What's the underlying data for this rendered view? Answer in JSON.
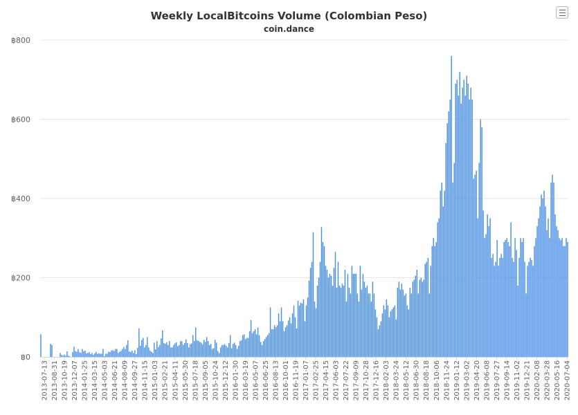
{
  "menu": {
    "icon": "hamburger-menu-icon"
  },
  "chart_data": {
    "type": "bar",
    "title": "Weekly LocalBitcoins Volume (Colombian Peso)",
    "subtitle": "coin.dance",
    "xlabel": "",
    "ylabel": "",
    "ylim": [
      0,
      800
    ],
    "y_ticks": [
      0,
      200,
      400,
      600,
      800
    ],
    "y_tick_labels": [
      "฿0",
      "฿200",
      "฿400",
      "฿600",
      "฿800"
    ],
    "grid": true,
    "legend": "none",
    "bar_color": "#4a8fe7",
    "axis_color": "#ccd6eb",
    "grid_color": "#e6e6e6",
    "x_tick_labels": [
      "2013-07-13",
      "2013-08-31",
      "2013-10-19",
      "2013-12-07",
      "2014-01-25",
      "2014-03-15",
      "2014-05-03",
      "2014-06-21",
      "2014-08-09",
      "2014-09-27",
      "2014-11-15",
      "2015-01-03",
      "2015-02-21",
      "2015-04-11",
      "2015-05-30",
      "2015-07-18",
      "2015-09-05",
      "2015-10-24",
      "2015-12-12",
      "2016-01-30",
      "2016-03-19",
      "2016-05-07",
      "2016-06-25",
      "2016-08-13",
      "2016-10-01",
      "2016-11-19",
      "2017-01-07",
      "2017-02-25",
      "2017-04-15",
      "2017-06-03",
      "2017-07-22",
      "2017-09-09",
      "2017-10-28",
      "2017-12-16",
      "2018-02-03",
      "2018-03-24",
      "2018-05-12",
      "2018-06-30",
      "2018-08-18",
      "2018-10-06",
      "2018-11-24",
      "2019-01-12",
      "2019-03-02",
      "2019-04-20",
      "2019-06-08",
      "2019-07-27",
      "2019-09-14",
      "2019-11-02",
      "2019-12-21",
      "2020-02-08",
      "2020-03-28",
      "2020-05-16",
      "2020-07-04"
    ],
    "start_week": "2013-07-13",
    "interval": "weekly",
    "values": [
      57,
      0,
      0,
      0,
      0,
      0,
      0,
      33,
      30,
      0,
      0,
      0,
      0,
      0,
      10,
      5,
      3,
      6,
      3,
      14,
      3,
      1,
      0,
      12,
      26,
      15,
      13,
      20,
      12,
      10,
      20,
      14,
      16,
      9,
      10,
      12,
      7,
      10,
      5,
      9,
      13,
      8,
      9,
      8,
      8,
      20,
      2,
      8,
      8,
      13,
      12,
      16,
      17,
      15,
      20,
      20,
      10,
      13,
      15,
      20,
      25,
      20,
      30,
      42,
      14,
      12,
      16,
      10,
      17,
      7,
      23,
      72,
      28,
      43,
      48,
      24,
      30,
      50,
      24,
      16,
      13,
      10,
      36,
      19,
      40,
      25,
      30,
      47,
      67,
      35,
      33,
      37,
      30,
      40,
      24,
      24,
      30,
      34,
      37,
      27,
      30,
      40,
      39,
      30,
      35,
      44,
      35,
      24,
      32,
      34,
      55,
      40,
      74,
      42,
      40,
      38,
      36,
      32,
      43,
      38,
      50,
      40,
      30,
      33,
      20,
      22,
      43,
      36,
      15,
      10,
      24,
      30,
      30,
      32,
      28,
      24,
      35,
      55,
      22,
      33,
      36,
      30,
      20,
      28,
      40,
      42,
      55,
      57,
      45,
      48,
      48,
      65,
      93,
      60,
      65,
      70,
      57,
      74,
      55,
      38,
      30,
      40,
      45,
      50,
      55,
      60,
      125,
      70,
      70,
      80,
      75,
      80,
      110,
      90,
      125,
      90,
      65,
      75,
      80,
      92,
      100,
      85,
      110,
      130,
      100,
      72,
      142,
      130,
      137,
      135,
      145,
      90,
      130,
      150,
      193,
      225,
      240,
      315,
      140,
      123,
      180,
      200,
      240,
      328,
      290,
      280,
      230,
      220,
      200,
      210,
      205,
      180,
      225,
      265,
      175,
      240,
      180,
      175,
      185,
      180,
      220,
      140,
      210,
      175,
      160,
      230,
      210,
      210,
      210,
      160,
      140,
      230,
      170,
      210,
      190,
      175,
      180,
      160,
      160,
      140,
      190,
      160,
      120,
      100,
      70,
      80,
      90,
      110,
      130,
      120,
      145,
      130,
      100,
      115,
      120,
      125,
      130,
      95,
      175,
      190,
      170,
      185,
      170,
      155,
      160,
      130,
      120,
      175,
      160,
      190,
      195,
      205,
      220,
      160,
      195,
      200,
      190,
      195,
      235,
      240,
      250,
      160,
      230,
      280,
      300,
      280,
      290,
      340,
      350,
      420,
      440,
      380,
      420,
      540,
      590,
      620,
      650,
      760,
      440,
      490,
      690,
      700,
      660,
      720,
      640,
      680,
      700,
      660,
      710,
      690,
      650,
      680,
      650,
      450,
      460,
      470,
      350,
      490,
      600,
      580,
      370,
      300,
      310,
      360,
      330,
      350,
      250,
      260,
      230,
      240,
      295,
      230,
      250,
      260,
      250,
      290,
      295,
      300,
      290,
      280,
      340,
      250,
      240,
      300,
      270,
      180,
      250,
      300,
      290,
      300,
      240,
      160,
      230,
      240,
      250,
      245,
      230,
      280,
      300,
      330,
      350,
      380,
      410,
      400,
      420,
      380,
      320,
      350,
      300,
      440,
      460,
      440,
      360,
      330,
      320,
      300,
      295,
      300,
      280,
      280,
      300,
      290
    ]
  }
}
